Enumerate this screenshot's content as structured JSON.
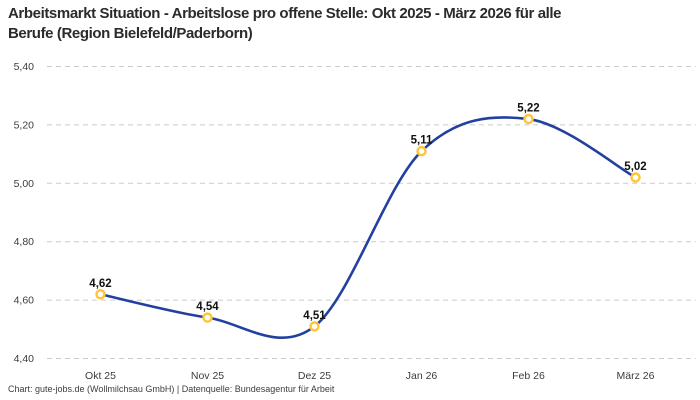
{
  "header": {
    "title": "Arbeitsmarkt Situation - Arbeitslose pro offene Stelle: Okt 2025 - März 2026 für alle\nBerufe (Region Bielefeld/Paderborn)"
  },
  "footer": {
    "source": "Chart: gute-jobs.de (Wollmilchsau GmbH) | Datenquelle: Bundesagentur für Arbeit"
  },
  "chart_data": {
    "type": "line",
    "title": "Arbeitsmarkt Situation - Arbeitslose pro offene Stelle: Okt 2025 - März 2026 für alle Berufe (Region Bielefeld/Paderborn)",
    "categories": [
      "Okt 25",
      "Nov 25",
      "Dez 25",
      "Jan 26",
      "Feb 26",
      "März 26"
    ],
    "values": [
      4.62,
      4.54,
      4.51,
      5.11,
      5.22,
      5.02
    ],
    "point_labels": [
      "4,62",
      "4,54",
      "4,51",
      "5,11",
      "5,22",
      "5,02"
    ],
    "xlabel": "",
    "ylabel": "",
    "ylim": [
      4.4,
      5.4
    ],
    "ytick_values": [
      5.4,
      5.2,
      5.0,
      4.8,
      4.6,
      4.4
    ],
    "ytick_labels": [
      "5,40",
      "5,20",
      "5,00",
      "4,80",
      "4,60",
      "4,40"
    ],
    "grid": "horizontal-dashed",
    "legend": "none",
    "curve": "smooth",
    "colors": {
      "line": "#23409F",
      "marker_ring": "#FFC53D",
      "marker_fill": "#FFFFFF",
      "grid_line": "#CCCCCC",
      "axis_label": "#3c3c3c",
      "point_label": "#111111"
    }
  }
}
